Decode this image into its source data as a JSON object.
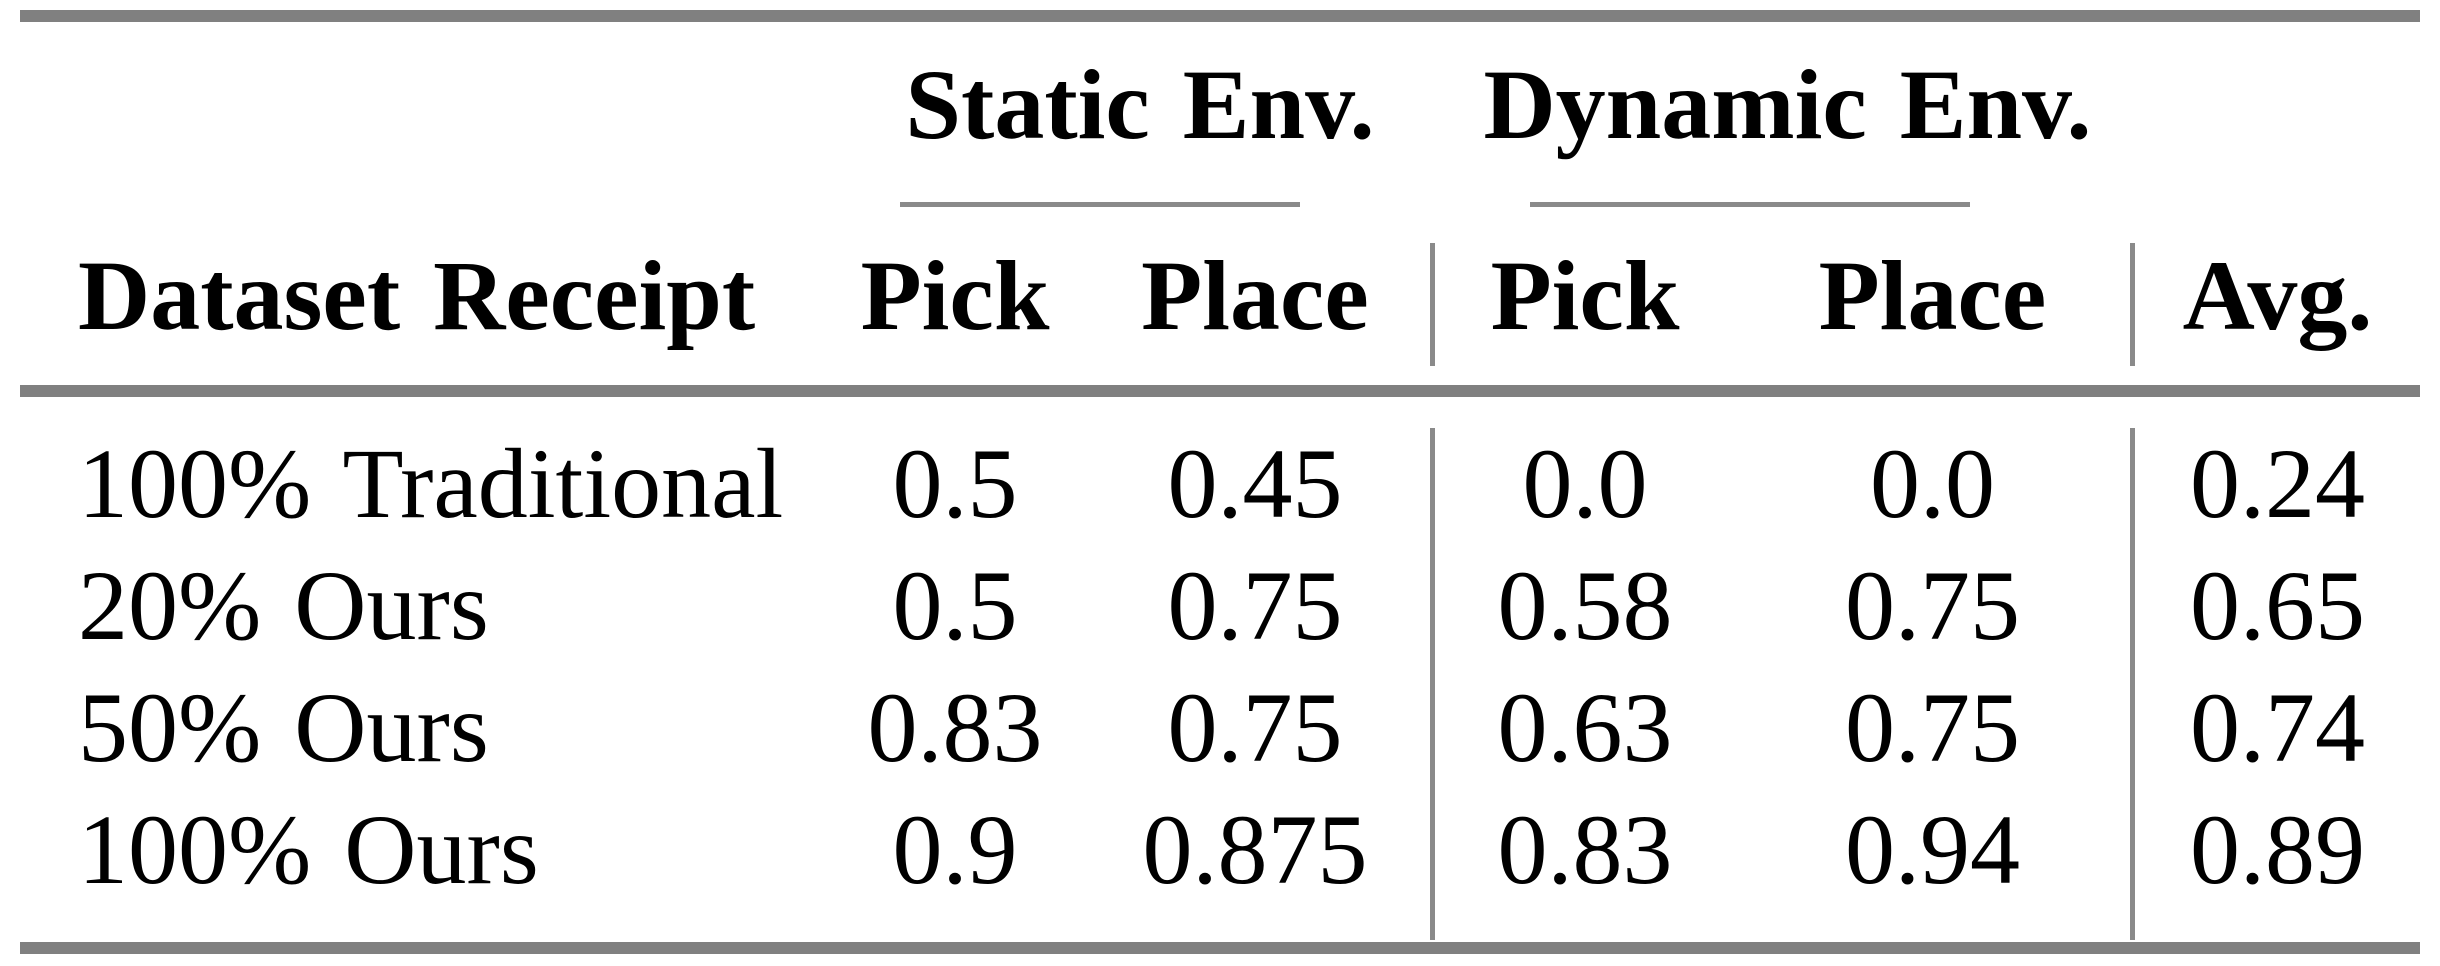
{
  "figure": {
    "type": "results-table",
    "background": "#ffffff",
    "text_color": "#000000",
    "rule_color": "#808080"
  },
  "table": {
    "row_header": "Dataset Receipt",
    "group_headers": [
      {
        "label": "Static Env.",
        "subcolumns": [
          "Pick",
          "Place"
        ]
      },
      {
        "label": "Dynamic Env.",
        "subcolumns": [
          "Pick",
          "Place"
        ]
      }
    ],
    "avg_header": "Avg.",
    "rows": [
      {
        "label": "100% Traditional",
        "values": [
          "0.5",
          "0.45",
          "0.0",
          "0.0",
          "0.24"
        ]
      },
      {
        "label": "20% Ours",
        "values": [
          "0.5",
          "0.75",
          "0.58",
          "0.75",
          "0.65"
        ]
      },
      {
        "label": "50% Ours",
        "values": [
          "0.83",
          "0.75",
          "0.63",
          "0.75",
          "0.74"
        ]
      },
      {
        "label": "100% Ours",
        "values": [
          "0.9",
          "0.875",
          "0.83",
          "0.94",
          "0.89"
        ]
      }
    ]
  }
}
